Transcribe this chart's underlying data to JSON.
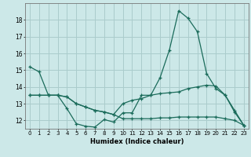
{
  "xlabel": "Humidex (Indice chaleur)",
  "x": [
    0,
    1,
    2,
    3,
    4,
    5,
    6,
    7,
    8,
    9,
    10,
    11,
    12,
    13,
    14,
    15,
    16,
    17,
    18,
    19,
    20,
    21,
    22,
    23
  ],
  "line1": [
    15.2,
    14.9,
    13.5,
    13.5,
    12.7,
    11.8,
    11.65,
    11.6,
    12.05,
    11.9,
    12.45,
    12.45,
    13.5,
    13.5,
    14.55,
    16.2,
    18.55,
    18.1,
    17.3,
    14.8,
    13.9,
    13.5,
    12.5,
    11.7
  ],
  "line2": [
    13.5,
    13.5,
    13.5,
    13.5,
    13.4,
    13.0,
    12.8,
    12.6,
    12.5,
    12.35,
    13.0,
    13.2,
    13.3,
    13.5,
    13.6,
    13.65,
    13.7,
    13.9,
    14.0,
    14.1,
    14.05,
    13.5,
    12.6,
    11.7
  ],
  "line3": [
    13.5,
    13.5,
    13.5,
    13.5,
    13.4,
    13.0,
    12.8,
    12.6,
    12.5,
    12.35,
    12.1,
    12.1,
    12.1,
    12.1,
    12.15,
    12.15,
    12.2,
    12.2,
    12.2,
    12.2,
    12.2,
    12.1,
    12.0,
    11.7
  ],
  "ylim": [
    11.5,
    19.0
  ],
  "yticks": [
    12,
    13,
    14,
    15,
    16,
    17,
    18
  ],
  "bg_color": "#cce8e8",
  "grid_color": "#aacccc",
  "line_color": "#1a6b5a"
}
